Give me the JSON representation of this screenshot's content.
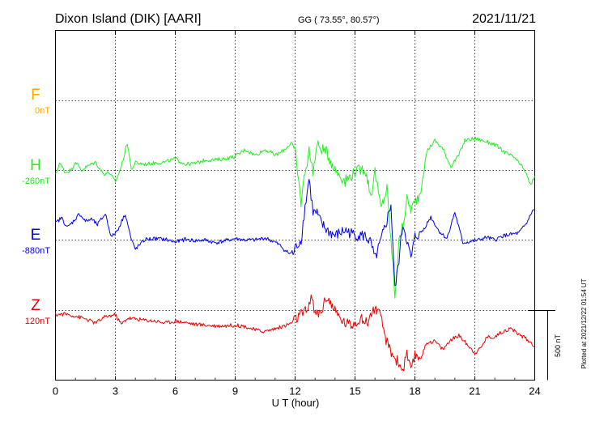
{
  "header": {
    "station": "Dixon Island (DIK)  [AARI]",
    "coords": "GG ( 73.55°,  80.57°)",
    "date": "2021/11/21"
  },
  "plotted_note": "Plotted at 2021/12/22 01:54 UT",
  "scale_label": "500 nT",
  "chart_data": {
    "type": "line",
    "xlabel": "U T (hour)",
    "xlim": [
      0,
      24
    ],
    "x_ticks": [
      "0",
      "3",
      "6",
      "9",
      "12",
      "15",
      "18",
      "21",
      "24"
    ],
    "scale_bar_nT": 500,
    "series": [
      {
        "name": "F",
        "baseline": "0nT",
        "color": "#ffa500",
        "baseline_value": 0,
        "x": [],
        "y": []
      },
      {
        "name": "H",
        "baseline": "-260nT",
        "color": "#22ee22",
        "baseline_value": -260,
        "x": [
          0,
          0.2,
          0.5,
          0.8,
          1.0,
          1.3,
          1.6,
          2.0,
          2.4,
          2.7,
          3.0,
          3.3,
          3.6,
          3.8,
          4.0,
          4.5,
          5.0,
          5.5,
          6.0,
          6.5,
          7.0,
          7.5,
          8.0,
          8.5,
          9.0,
          9.5,
          10.0,
          10.5,
          11.0,
          11.3,
          11.5,
          11.7,
          11.8,
          12.0,
          12.3,
          12.5,
          12.7,
          12.9,
          13.1,
          13.3,
          13.6,
          14.0,
          14.5,
          15.0,
          15.5,
          15.8,
          16.0,
          16.3,
          16.6,
          16.8,
          17.0,
          17.2,
          17.4,
          17.6,
          17.8,
          18.0,
          18.3,
          18.6,
          19.0,
          19.4,
          19.8,
          20.2,
          20.5,
          21.0,
          21.5,
          22.0,
          22.5,
          23.0,
          23.5,
          23.8,
          24.0
        ],
        "y": [
          -295,
          -205,
          -275,
          -255,
          -195,
          -260,
          -230,
          -200,
          -285,
          -275,
          -345,
          -230,
          -60,
          -255,
          -205,
          -215,
          -205,
          -200,
          -175,
          -215,
          -210,
          -185,
          -185,
          -175,
          -160,
          -110,
          -150,
          -110,
          -150,
          -130,
          -105,
          -80,
          -55,
          -130,
          -490,
          -265,
          -120,
          -260,
          -80,
          -100,
          -135,
          -255,
          -335,
          -270,
          -245,
          -440,
          -270,
          -535,
          -390,
          -760,
          -1150,
          -780,
          -650,
          -470,
          -535,
          -490,
          -410,
          -120,
          -45,
          -105,
          -230,
          -150,
          -45,
          -30,
          -50,
          -75,
          -130,
          -170,
          -260,
          -370,
          -300
        ]
      },
      {
        "name": "E",
        "baseline": "-880nT",
        "color": "#0000ee",
        "baseline_value": -880,
        "x": [
          0,
          0.3,
          0.6,
          0.9,
          1.2,
          1.5,
          1.8,
          2.1,
          2.5,
          2.8,
          3.1,
          3.5,
          3.8,
          4.0,
          4.5,
          5.0,
          5.5,
          6.0,
          6.5,
          7.0,
          7.5,
          8.0,
          8.5,
          9.0,
          9.5,
          10.0,
          10.5,
          11.0,
          11.3,
          11.5,
          11.7,
          11.9,
          12.1,
          12.3,
          12.5,
          12.7,
          12.9,
          13.1,
          13.3,
          13.6,
          14.0,
          14.5,
          15.0,
          15.5,
          15.8,
          16.0,
          16.3,
          16.6,
          16.8,
          17.0,
          17.2,
          17.4,
          17.6,
          17.8,
          18.0,
          18.4,
          18.8,
          19.2,
          19.6,
          20.0,
          20.4,
          20.8,
          21.2,
          21.6,
          22.0,
          22.4,
          22.8,
          23.2,
          23.6,
          23.8,
          24.0
        ],
        "y": [
          -760,
          -720,
          -790,
          -745,
          -690,
          -745,
          -730,
          -770,
          -690,
          -860,
          -810,
          -690,
          -880,
          -945,
          -875,
          -870,
          -875,
          -895,
          -875,
          -885,
          -880,
          -900,
          -885,
          -870,
          -880,
          -880,
          -865,
          -895,
          -925,
          -955,
          -975,
          -975,
          -915,
          -880,
          -640,
          -440,
          -680,
          -690,
          -760,
          -810,
          -850,
          -810,
          -845,
          -850,
          -905,
          -1020,
          -885,
          -740,
          -620,
          -1240,
          -1020,
          -760,
          -880,
          -1020,
          -860,
          -810,
          -715,
          -815,
          -870,
          -680,
          -900,
          -890,
          -880,
          -860,
          -880,
          -850,
          -840,
          -830,
          -760,
          -690,
          -660
        ]
      },
      {
        "name": "Z",
        "baseline": "120nT",
        "color": "#ee0000",
        "baseline_value": 120,
        "x": [
          0,
          0.5,
          1.0,
          1.5,
          2.0,
          2.5,
          3.0,
          3.3,
          3.6,
          4.0,
          4.5,
          5.0,
          5.5,
          6.0,
          6.5,
          7.0,
          7.5,
          8.0,
          8.5,
          9.0,
          9.5,
          10.0,
          10.5,
          11.0,
          11.5,
          11.8,
          12.0,
          12.3,
          12.6,
          12.8,
          13.0,
          13.3,
          13.6,
          14.0,
          14.4,
          14.8,
          15.2,
          15.6,
          16.0,
          16.3,
          16.6,
          16.9,
          17.2,
          17.4,
          17.6,
          17.8,
          18.0,
          18.3,
          18.6,
          19.0,
          19.4,
          19.8,
          20.2,
          20.6,
          21.0,
          21.3,
          21.6,
          22.0,
          22.4,
          22.8,
          23.2,
          23.6,
          24.0
        ],
        "y": [
          90,
          95,
          80,
          60,
          30,
          75,
          90,
          20,
          65,
          60,
          50,
          45,
          30,
          45,
          35,
          20,
          15,
          10,
          10,
          15,
          5,
          -20,
          -30,
          -10,
          10,
          30,
          55,
          90,
          115,
          230,
          90,
          110,
          225,
          110,
          40,
          15,
          60,
          35,
          145,
          60,
          -115,
          -200,
          -260,
          -310,
          -190,
          -330,
          -200,
          -220,
          -110,
          -100,
          -160,
          -90,
          -60,
          -120,
          -185,
          -150,
          -70,
          -70,
          -30,
          -10,
          -50,
          -85,
          -135
        ]
      }
    ]
  }
}
